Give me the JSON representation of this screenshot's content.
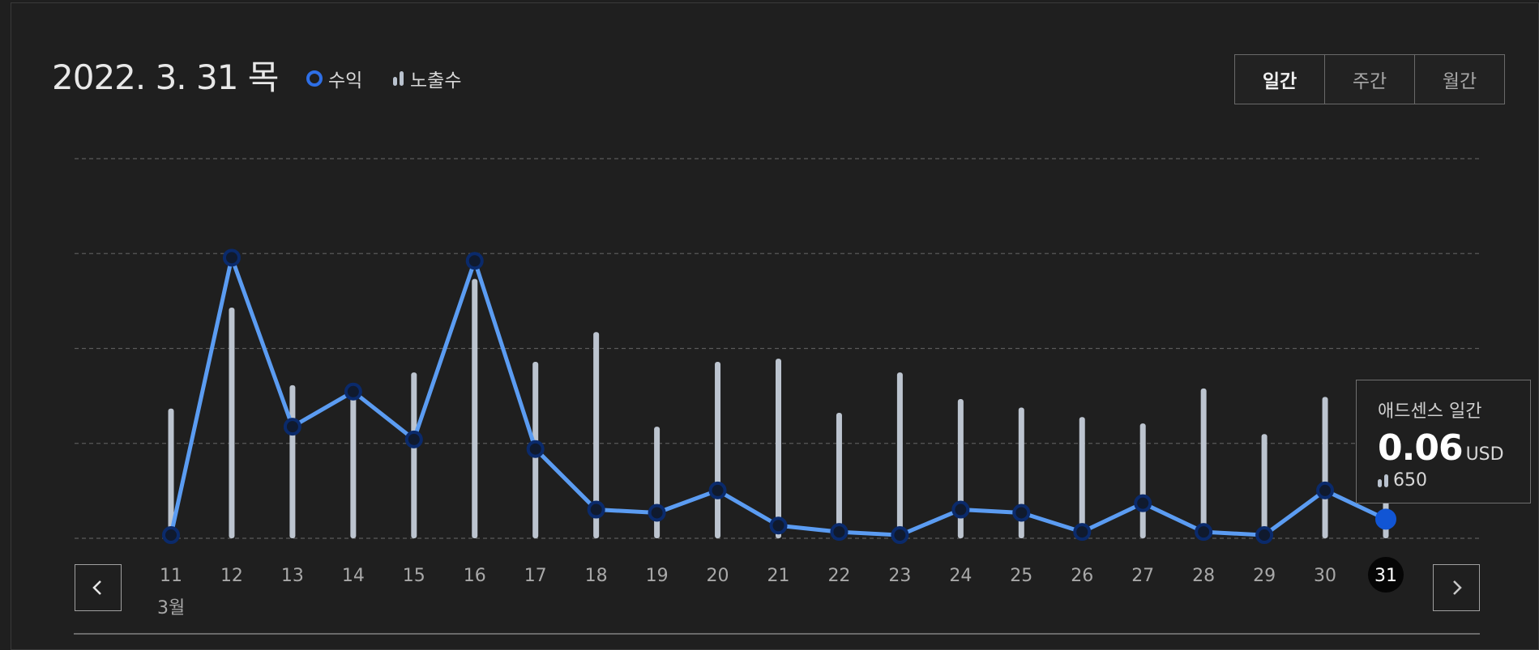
{
  "header": {
    "date": "2022. 3. 31 목",
    "legend_revenue": "수익",
    "legend_impressions": "노출수"
  },
  "period_tabs": [
    {
      "label": "일간",
      "active": true
    },
    {
      "label": "주간",
      "active": false
    },
    {
      "label": "월간",
      "active": false
    }
  ],
  "tooltip": {
    "title": "애드센스 일간",
    "value": "0.06",
    "unit": "USD",
    "impressions": "650"
  },
  "month_label": "3월",
  "icons": {
    "prev": "chevron-left-icon",
    "next": "chevron-right-icon"
  },
  "colors": {
    "revenue_line": "#5b9cf2",
    "revenue_marker": "#0a2a6b",
    "revenue_selected": "#1155d4",
    "impression_bar": "#bcc4cf",
    "grid": "#5a5a5a"
  },
  "chart_data": {
    "type": "line",
    "x": [
      "11",
      "12",
      "13",
      "14",
      "15",
      "16",
      "17",
      "18",
      "19",
      "20",
      "21",
      "22",
      "23",
      "24",
      "25",
      "26",
      "27",
      "28",
      "29",
      "30",
      "31"
    ],
    "selected": "31",
    "series": [
      {
        "name": "수익",
        "type": "line",
        "values": [
          0.01,
          0.88,
          0.35,
          0.46,
          0.31,
          0.87,
          0.28,
          0.09,
          0.08,
          0.15,
          0.04,
          0.02,
          0.01,
          0.09,
          0.08,
          0.02,
          0.11,
          0.02,
          0.01,
          0.15,
          0.06
        ]
      },
      {
        "name": "노출수",
        "type": "bar",
        "values": [
          1220,
          2170,
          1440,
          1340,
          1560,
          2440,
          1660,
          1940,
          1050,
          1660,
          1690,
          1180,
          1560,
          1310,
          1230,
          1140,
          1080,
          1410,
          980,
          1330,
          650
        ]
      }
    ],
    "grid": true,
    "legend": "top-left"
  }
}
